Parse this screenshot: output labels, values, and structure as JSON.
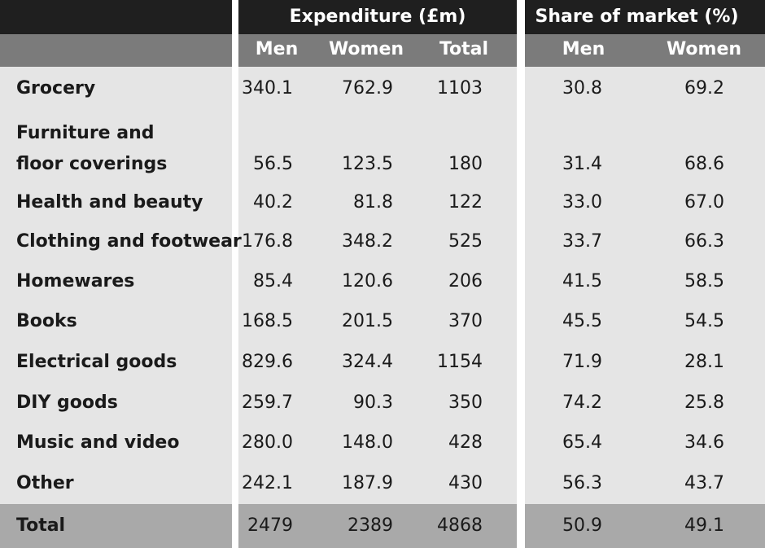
{
  "header": {
    "groups": [
      "Expenditure (£m)",
      "Share of market (%)"
    ],
    "columns": [
      "Men",
      "Women",
      "Total",
      "Men",
      "Women"
    ]
  },
  "table": {
    "rows": [
      {
        "label": [
          "Grocery"
        ],
        "values": [
          "340.1",
          "762.9",
          "1103",
          "30.8",
          "69.2"
        ]
      },
      {
        "label": [
          "Furniture and",
          "floor coverings"
        ],
        "values": [
          "56.5",
          "123.5",
          "180",
          "31.4",
          "68.6"
        ]
      },
      {
        "label": [
          "Health and beauty"
        ],
        "values": [
          "40.2",
          "81.8",
          "122",
          "33.0",
          "67.0"
        ]
      },
      {
        "label": [
          "Clothing and footwear"
        ],
        "values": [
          "176.8",
          "348.2",
          "525",
          "33.7",
          "66.3"
        ]
      },
      {
        "label": [
          "Homewares"
        ],
        "values": [
          "85.4",
          "120.6",
          "206",
          "41.5",
          "58.5"
        ]
      },
      {
        "label": [
          "Books"
        ],
        "values": [
          "168.5",
          "201.5",
          "370",
          "45.5",
          "54.5"
        ]
      },
      {
        "label": [
          "Electrical goods"
        ],
        "values": [
          "829.6",
          "324.4",
          "1154",
          "71.9",
          "28.1"
        ]
      },
      {
        "label": [
          "DIY goods"
        ],
        "values": [
          "259.7",
          "90.3",
          "350",
          "74.2",
          "25.8"
        ]
      },
      {
        "label": [
          "Music and video"
        ],
        "values": [
          "280.0",
          "148.0",
          "428",
          "65.4",
          "34.6"
        ]
      },
      {
        "label": [
          "Other"
        ],
        "values": [
          "242.1",
          "187.9",
          "430",
          "56.3",
          "43.7"
        ]
      }
    ],
    "total": {
      "label": "Total",
      "values": [
        "2479",
        "2389",
        "4868",
        "50.9",
        "49.1"
      ]
    }
  }
}
